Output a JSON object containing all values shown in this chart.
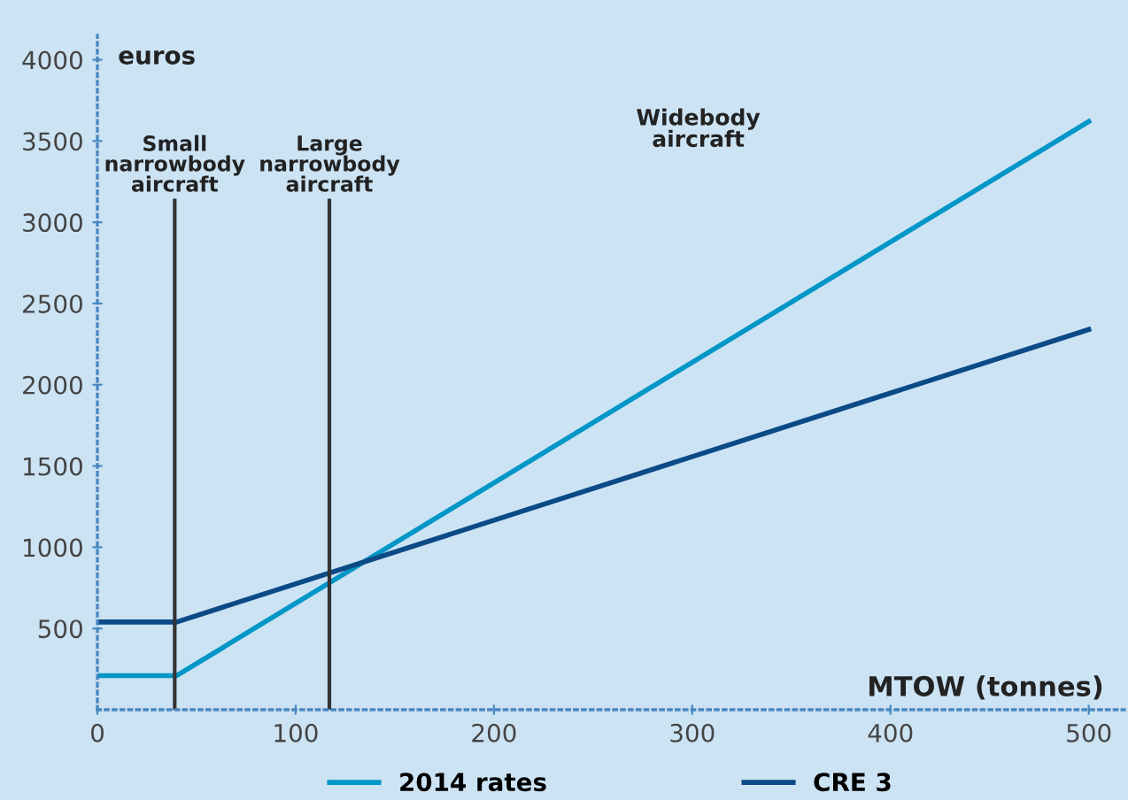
{
  "chart_data": {
    "type": "line",
    "xlabel": "MTOW (tonnes)",
    "ylabel": "euros",
    "series": [
      {
        "name": "2014 rates",
        "color": "#0096c8",
        "x": [
          0,
          40,
          500
        ],
        "values": [
          210,
          210,
          3620
        ]
      },
      {
        "name": "CRE 3",
        "color": "#0b4a86",
        "x": [
          0,
          40,
          500
        ],
        "values": [
          540,
          540,
          2340
        ]
      }
    ],
    "xlim": [
      0,
      518
    ],
    "xticks": [
      0,
      100,
      200,
      300,
      400,
      500
    ],
    "ylim": [
      0,
      4150
    ],
    "yticks": [
      500,
      1000,
      1500,
      2000,
      2500,
      3000,
      3500,
      4000
    ],
    "ref_lines": [
      {
        "axis": "x",
        "value": 39,
        "label": "Small\nnarrowbody\naircraft",
        "color": "#333333"
      },
      {
        "axis": "x",
        "value": 117,
        "label": "Large\nnarrowbody\naircraft",
        "color": "#333333"
      }
    ],
    "annotations": [
      "Widebody\naircraft"
    ],
    "grid": false,
    "legend": "bottom",
    "marker": "none",
    "line_style": "solid"
  }
}
